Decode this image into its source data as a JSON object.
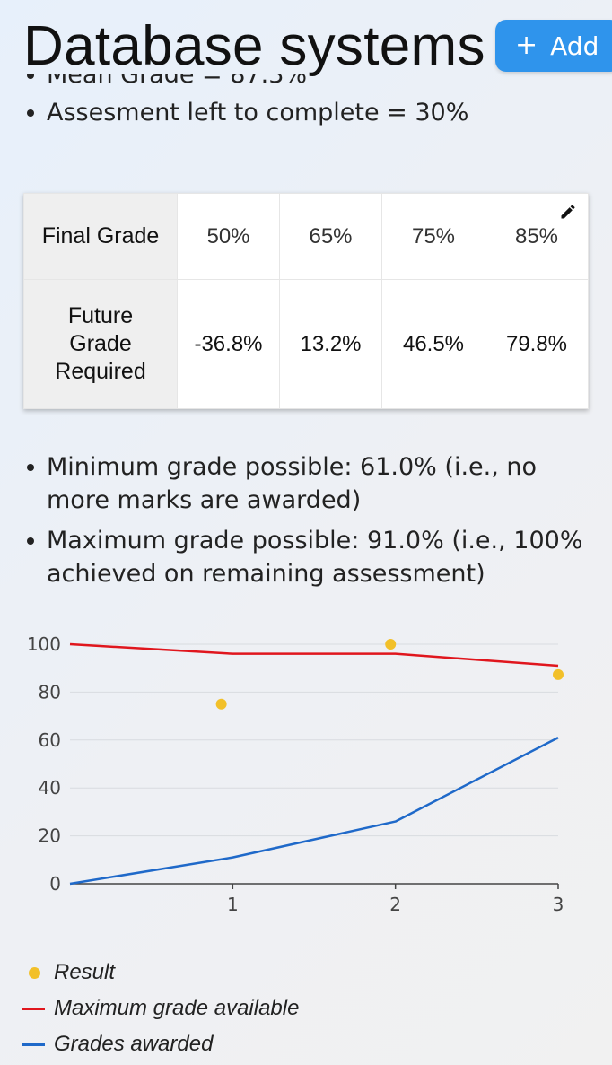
{
  "header": {
    "title": "Database systems",
    "add_label": "Add"
  },
  "stats": [
    "Mean Grade = 87.3%",
    "Assesment left to complete = 30%"
  ],
  "grade_table": {
    "final_label": "Final Grade",
    "future_label": "Future Grade Required",
    "finals": [
      "50%",
      "65%",
      "75%",
      "85%"
    ],
    "required": [
      "-36.8%",
      "13.2%",
      "46.5%",
      "79.8%"
    ]
  },
  "info": [
    "Minimum grade possible: 61.0% (i.e., no more marks are awarded)",
    "Maximum grade possible: 91.0% (i.e., 100% achieved on remaining assessment)"
  ],
  "colors": {
    "accent": "#2f94ec",
    "result": "#f2c029",
    "max_line": "#e0161d",
    "awarded_line": "#1f69c9"
  },
  "chart_data": {
    "type": "line",
    "xlim": [
      0,
      3
    ],
    "ylim": [
      0,
      100
    ],
    "x_ticks": [
      1,
      2,
      3
    ],
    "y_ticks": [
      0,
      20,
      40,
      60,
      80,
      100
    ],
    "grid": true,
    "legend_position": "bottom",
    "series": [
      {
        "name": "Result",
        "kind": "scatter",
        "color": "#f2c029",
        "x": [
          0.93,
          1.97,
          3
        ],
        "y": [
          75,
          100,
          87.3
        ]
      },
      {
        "name": "Maximum grade available",
        "kind": "line",
        "color": "#e0161d",
        "x": [
          0,
          1,
          2,
          3
        ],
        "y": [
          100,
          96,
          96,
          91
        ]
      },
      {
        "name": "Grades awarded",
        "kind": "line",
        "color": "#1f69c9",
        "x": [
          0,
          1,
          2,
          3
        ],
        "y": [
          0,
          11,
          26,
          61
        ]
      }
    ]
  }
}
